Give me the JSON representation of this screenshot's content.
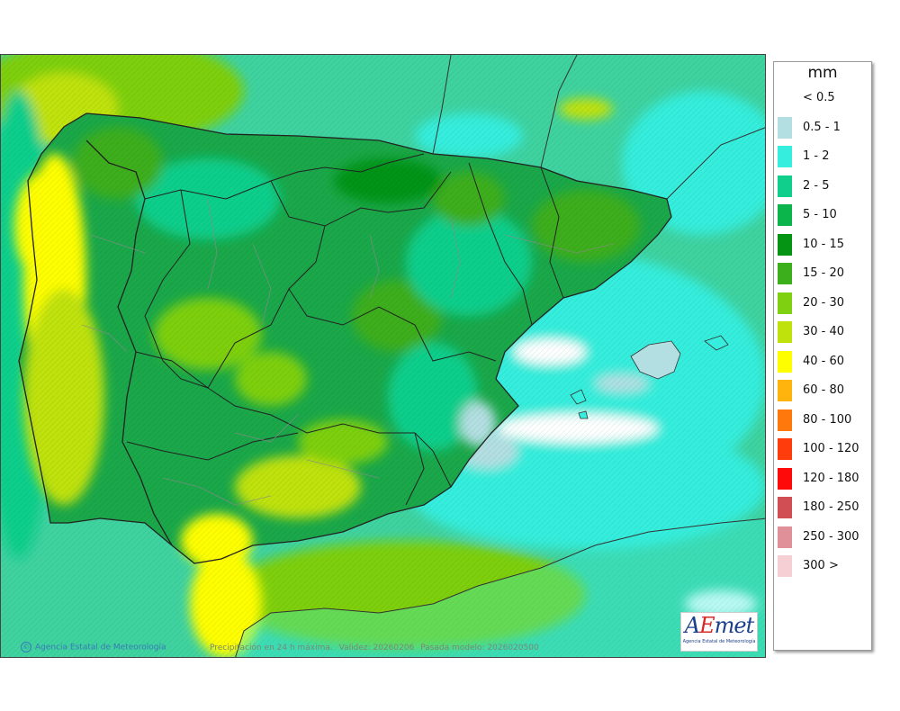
{
  "credit": "Agencia Estatal de Meteorología",
  "caption": {
    "parts": [
      "Precipitación en 24 h máxima.",
      "Validez: 20260206",
      "Pasada modelo: 2026020500"
    ]
  },
  "logo": {
    "word_a": "A",
    "word_e": "E",
    "word_rest": "met",
    "subtitle": "Agencia Estatal de Meteorología"
  },
  "legend": {
    "unit": "mm",
    "entries": [
      {
        "label": "< 0.5",
        "color": "#ffffff"
      },
      {
        "label": "0.5 - 1",
        "color": "#b4dfe2"
      },
      {
        "label": "1 - 2",
        "color": "#36eedd"
      },
      {
        "label": "2 - 5",
        "color": "#10cf8c"
      },
      {
        "label": "5 - 10",
        "color": "#0cb44c"
      },
      {
        "label": "10 - 15",
        "color": "#059414"
      },
      {
        "label": "15 - 20",
        "color": "#3caf1c"
      },
      {
        "label": "20 - 30",
        "color": "#7ed010"
      },
      {
        "label": "30 - 40",
        "color": "#c0e20c"
      },
      {
        "label": "40 - 60",
        "color": "#fefe00"
      },
      {
        "label": "60 - 80",
        "color": "#feb40c"
      },
      {
        "label": "80 - 100",
        "color": "#fe780c"
      },
      {
        "label": "100 - 120",
        "color": "#fe3c0c"
      },
      {
        "label": "120 - 180",
        "color": "#fe0a0a"
      },
      {
        "label": "180 - 250",
        "color": "#d24e55"
      },
      {
        "label": "250 - 300",
        "color": "#df9099"
      },
      {
        "label": "300 >",
        "color": "#f5cfd3"
      }
    ]
  },
  "colors": {
    "sea": "#3fd3a0",
    "border": "#222222",
    "province": "#8a8a8a"
  }
}
